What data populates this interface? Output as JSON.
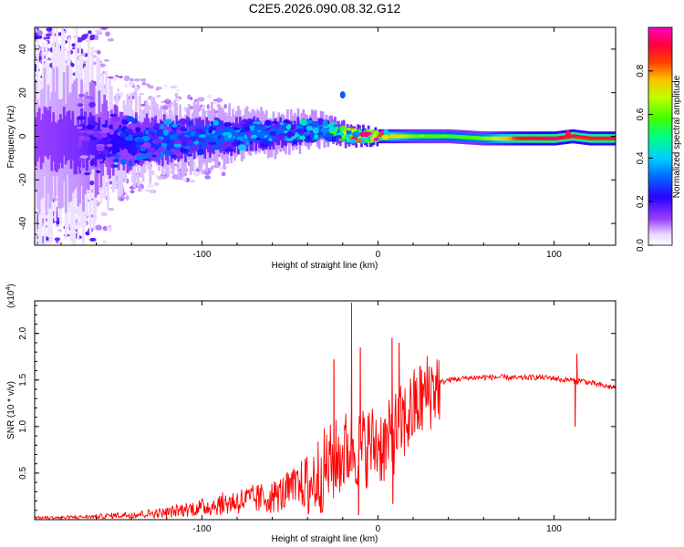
{
  "title": "C2E5.2026.090.08.32.G12",
  "chart_data": [
    {
      "type": "heatmap",
      "name": "spectrogram",
      "xlabel": "Height of straight line (km)",
      "ylabel": "Frequency (Hz)",
      "xlim": [
        -195,
        135
      ],
      "ylim": [
        -50,
        50
      ],
      "xticks": [
        -100,
        0,
        100
      ],
      "xtick_labels": [
        "-100",
        "0",
        "100"
      ],
      "yticks": [
        -40,
        -20,
        0,
        20,
        40
      ],
      "ytick_labels": [
        "-40",
        "-20",
        "0",
        "20",
        "40"
      ],
      "colorbar": {
        "label": "Normalized spectral amplitude",
        "range": [
          0,
          1
        ],
        "ticks": [
          0.0,
          0.2,
          0.4,
          0.6,
          0.8
        ],
        "tick_labels": [
          "0.0",
          "0.2",
          "0.4",
          "0.6",
          "0.8"
        ],
        "colormap": [
          "#ffffff",
          "#c8a8ff",
          "#7000ff",
          "#0000ff",
          "#00ccff",
          "#00ff66",
          "#66ff00",
          "#ffff00",
          "#ff8000",
          "#ff0000",
          "#ff00aa"
        ]
      },
      "band": {
        "description": "frequency-centred energy band around 0 Hz",
        "x": [
          -195,
          -170,
          -150,
          -130,
          -110,
          -90,
          -70,
          -50,
          -30,
          -20,
          -10,
          0,
          20,
          40,
          60,
          80,
          100,
          110,
          120,
          135
        ],
        "center_hz": [
          -2,
          -2,
          -2,
          -2,
          -1,
          0,
          1,
          2,
          3,
          1,
          0,
          0,
          0,
          0,
          -1,
          -1,
          -1,
          0,
          -1,
          -1
        ],
        "halfwidth_hz": [
          25,
          25,
          12,
          9,
          8,
          7,
          6,
          5,
          4,
          3,
          2.5,
          2,
          2,
          2,
          2,
          2,
          2,
          2,
          2,
          2
        ],
        "peak_amplitude": [
          0.12,
          0.15,
          0.22,
          0.25,
          0.28,
          0.3,
          0.3,
          0.32,
          0.35,
          0.55,
          0.7,
          0.8,
          0.6,
          0.55,
          0.6,
          0.85,
          0.9,
          0.85,
          0.85,
          0.85
        ]
      },
      "features": [
        {
          "x": -20,
          "freq_hz": 19,
          "amplitude": 0.3
        },
        {
          "x": -30,
          "freq_hz": 6,
          "amplitude": 0.35
        },
        {
          "x": 108,
          "freq_hz": 1,
          "amplitude": 0.9
        }
      ]
    },
    {
      "type": "line",
      "name": "snr",
      "xlabel": "Height of straight line (km)",
      "ylabel": "SNR (10 * v/v)",
      "y_multiplier": "(x10",
      "y_multiplier_exp": "4",
      "y_multiplier_close": ")",
      "xlim": [
        -195,
        135
      ],
      "ylim": [
        0,
        2.35
      ],
      "xticks": [
        -100,
        0,
        100
      ],
      "xtick_labels": [
        "-100",
        "0",
        "100"
      ],
      "yticks": [
        0.5,
        1.0,
        1.5,
        2.0
      ],
      "ytick_labels": [
        "0.5",
        "1.0",
        "1.5",
        "2.0"
      ],
      "color": "#ff0000",
      "series": [
        {
          "name": "SNR",
          "x": [
            -195,
            -180,
            -160,
            -150,
            -140,
            -120,
            -110,
            -100,
            -90,
            -80,
            -70,
            -60,
            -55,
            -50,
            -45,
            -40,
            -35,
            -30,
            -25,
            -20,
            -15,
            -10,
            -5,
            0,
            5,
            10,
            15,
            20,
            25,
            30,
            35,
            40,
            50,
            60,
            70,
            80,
            90,
            100,
            105,
            110,
            113,
            115,
            120,
            125,
            130,
            135
          ],
          "y": [
            0.02,
            0.02,
            0.03,
            0.04,
            0.05,
            0.07,
            0.1,
            0.12,
            0.15,
            0.18,
            0.2,
            0.22,
            0.25,
            0.28,
            0.32,
            0.38,
            0.45,
            0.55,
            0.62,
            0.7,
            0.8,
            0.75,
            0.8,
            0.82,
            0.8,
            0.95,
            1.05,
            1.18,
            1.3,
            1.4,
            1.47,
            1.5,
            1.52,
            1.53,
            1.53,
            1.52,
            1.53,
            1.52,
            1.5,
            1.5,
            1.48,
            1.5,
            1.47,
            1.45,
            1.43,
            1.42
          ]
        }
      ],
      "spikes": [
        {
          "x": -15,
          "y": 2.33
        },
        {
          "x": -10,
          "y": 1.85
        },
        {
          "x": 8,
          "y": 1.95
        },
        {
          "x": 12,
          "y": 1.9
        },
        {
          "x": -25,
          "y": 1.72
        },
        {
          "x": 8.5,
          "y": 0.17
        },
        {
          "x": -11,
          "y": 0.05
        },
        {
          "x": 113,
          "y": 1.78
        },
        {
          "x": 112,
          "y": 1.0
        }
      ]
    }
  ]
}
